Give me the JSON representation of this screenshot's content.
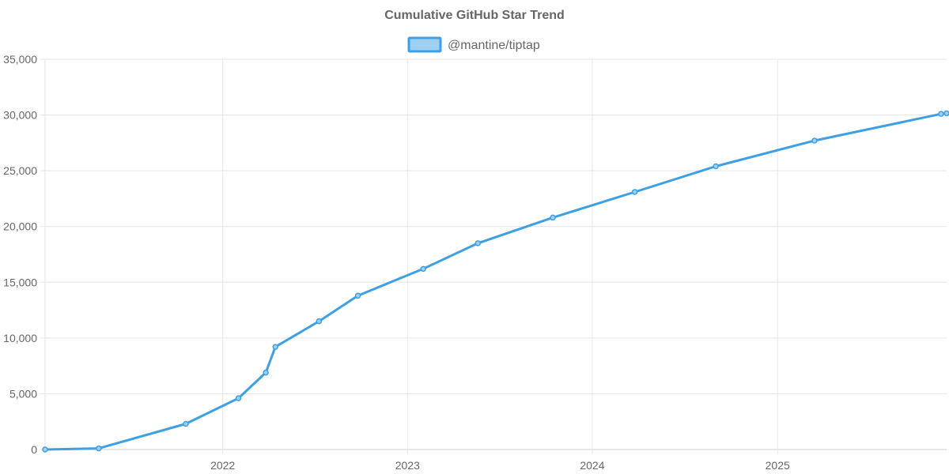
{
  "chart_data": {
    "type": "line",
    "title": "Cumulative GitHub Star Trend",
    "xlabel": "",
    "ylabel": "",
    "legend_position": "top",
    "grid": true,
    "x_ticks": [
      "2022",
      "2023",
      "2024",
      "2025"
    ],
    "x_tick_dates": [
      "2022-01-01",
      "2023-01-01",
      "2024-01-01",
      "2025-01-01"
    ],
    "xlim": [
      "2021-01-15",
      "2025-12-01"
    ],
    "ylim": [
      0,
      35000
    ],
    "y_ticks": [
      0,
      5000,
      10000,
      15000,
      20000,
      25000,
      30000,
      35000
    ],
    "y_tick_labels": [
      "0",
      "5,000",
      "10,000",
      "15,000",
      "20,000",
      "25,000",
      "30,000",
      "35,000"
    ],
    "series": [
      {
        "name": "@mantine/tiptap",
        "color": "#3ea0e4",
        "fill_color": "#9fd0f2",
        "points": [
          {
            "x": "2021-01-15",
            "y": 0
          },
          {
            "x": "2021-05-01",
            "y": 100
          },
          {
            "x": "2021-10-20",
            "y": 2300
          },
          {
            "x": "2022-02-01",
            "y": 4600
          },
          {
            "x": "2022-03-27",
            "y": 6900
          },
          {
            "x": "2022-04-15",
            "y": 9200
          },
          {
            "x": "2022-07-10",
            "y": 11500
          },
          {
            "x": "2022-09-25",
            "y": 13800
          },
          {
            "x": "2023-02-01",
            "y": 16200
          },
          {
            "x": "2023-05-20",
            "y": 18500
          },
          {
            "x": "2023-10-15",
            "y": 20800
          },
          {
            "x": "2024-03-25",
            "y": 23100
          },
          {
            "x": "2024-09-01",
            "y": 25400
          },
          {
            "x": "2025-03-15",
            "y": 27700
          },
          {
            "x": "2025-11-20",
            "y": 30100
          },
          {
            "x": "2025-12-01",
            "y": 30150
          }
        ]
      }
    ]
  }
}
